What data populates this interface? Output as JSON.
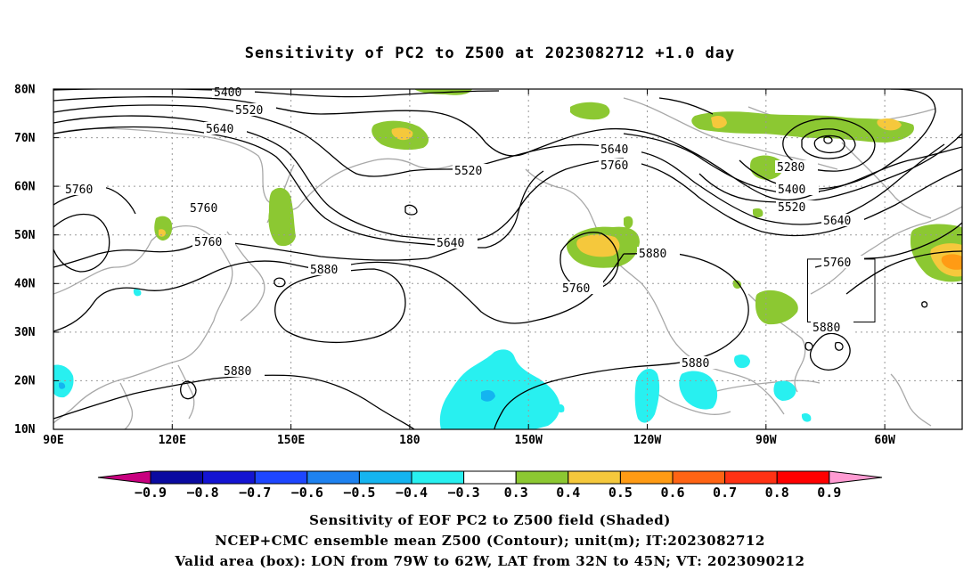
{
  "title": "Sensitivity of PC2 to Z500 at 2023082712 +1.0 day",
  "map": {
    "lat_labels": [
      "80N",
      "70N",
      "60N",
      "50N",
      "40N",
      "30N",
      "20N",
      "10N"
    ],
    "lon_labels": [
      "90E",
      "120E",
      "150E",
      "180",
      "150W",
      "120W",
      "90W",
      "60W"
    ],
    "contour_labels": [
      {
        "text": "5400"
      },
      {
        "text": "5520"
      },
      {
        "text": "5640"
      },
      {
        "text": "5760"
      },
      {
        "text": "5760"
      },
      {
        "text": "5760"
      },
      {
        "text": "5880"
      },
      {
        "text": "5880"
      },
      {
        "text": "5520"
      },
      {
        "text": "5640"
      },
      {
        "text": "5640"
      },
      {
        "text": "5760"
      },
      {
        "text": "5760"
      },
      {
        "text": "5880"
      },
      {
        "text": "5880"
      },
      {
        "text": "5280"
      },
      {
        "text": "5400"
      },
      {
        "text": "5520"
      },
      {
        "text": "5640"
      },
      {
        "text": "5760"
      },
      {
        "text": "5880"
      }
    ],
    "valid_box": {
      "lon_west": -79,
      "lon_east": -62,
      "lat_south": 32,
      "lat_north": 45
    }
  },
  "colorbar": {
    "labels": [
      "−0.9",
      "−0.8",
      "−0.7",
      "−0.6",
      "−0.5",
      "−0.4",
      "−0.3",
      "0.3",
      "0.4",
      "0.5",
      "0.6",
      "0.7",
      "0.8",
      "0.9"
    ],
    "colors": [
      "#c8007f",
      "#0a0aa0",
      "#1414d2",
      "#1e46ff",
      "#1e82f0",
      "#14b4f0",
      "#28f0f0",
      "#ffffff",
      "#8cc832",
      "#f5c83c",
      "#ff9b14",
      "#ff6414",
      "#ff3214",
      "#ff0000",
      "#ff9bd2"
    ]
  },
  "captions": [
    "Sensitivity of EOF PC2 to Z500 field (Shaded)",
    "NCEP+CMC ensemble mean Z500 (Contour); unit(m); IT:2023082712",
    "Valid area (box): LON from 79W to 62W, LAT from 32N to 45N; VT: 2023090212"
  ]
}
